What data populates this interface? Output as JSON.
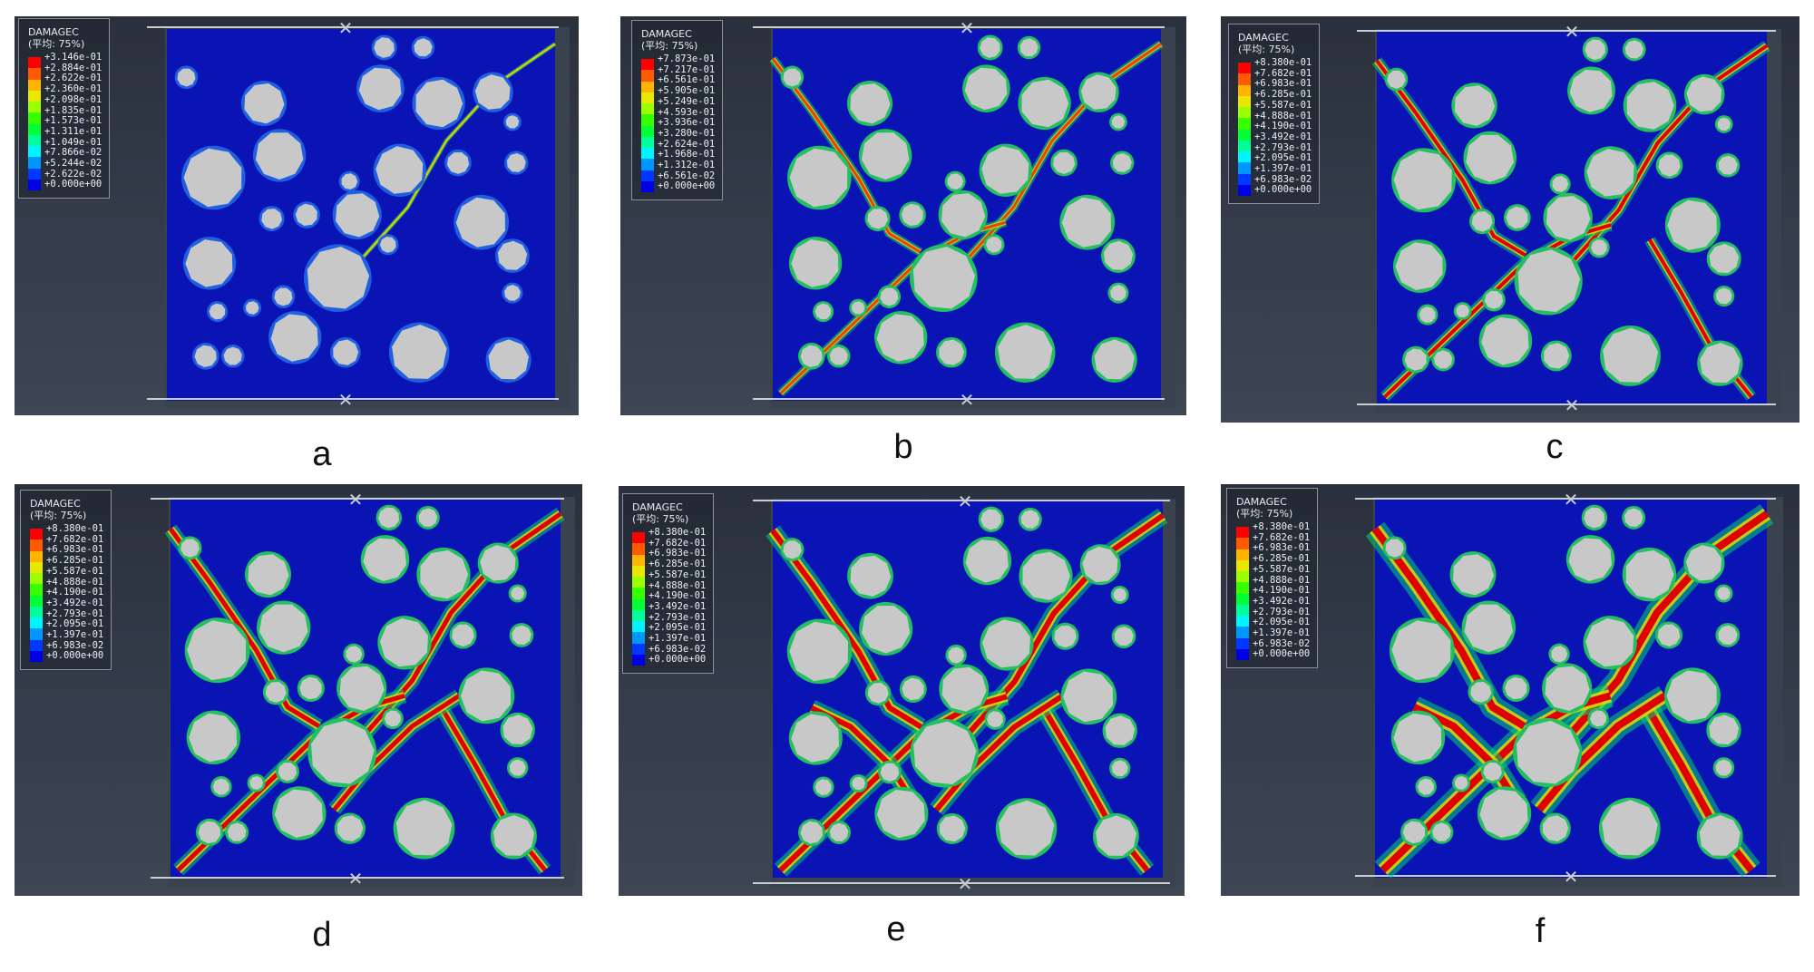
{
  "legend": {
    "title": "DAMAGEC",
    "subtitle": "(平均: 75%)",
    "colors": [
      "#ff0000",
      "#ff5a00",
      "#ffb400",
      "#e8e800",
      "#9cff00",
      "#38ff00",
      "#00ff34",
      "#00ff9a",
      "#00f4ff",
      "#0096ff",
      "#0038ff",
      "#0000e6"
    ]
  },
  "panels": [
    {
      "id": "a",
      "caption": "a",
      "values": [
        "+3.146e-01",
        "+2.884e-01",
        "+2.622e-01",
        "+2.360e-01",
        "+2.098e-01",
        "+1.835e-01",
        "+1.573e-01",
        "+1.311e-01",
        "+1.049e-01",
        "+7.866e-02",
        "+5.244e-02",
        "+2.622e-02",
        "+0.000e+00"
      ]
    },
    {
      "id": "b",
      "caption": "b",
      "values": [
        "+7.873e-01",
        "+7.217e-01",
        "+6.561e-01",
        "+5.905e-01",
        "+5.249e-01",
        "+4.593e-01",
        "+3.936e-01",
        "+3.280e-01",
        "+2.624e-01",
        "+1.968e-01",
        "+1.312e-01",
        "+6.561e-02",
        "+0.000e+00"
      ]
    },
    {
      "id": "c",
      "caption": "c",
      "values": [
        "+8.380e-01",
        "+7.682e-01",
        "+6.983e-01",
        "+6.285e-01",
        "+5.587e-01",
        "+4.888e-01",
        "+4.190e-01",
        "+3.492e-01",
        "+2.793e-01",
        "+2.095e-01",
        "+1.397e-01",
        "+6.983e-02",
        "+0.000e+00"
      ]
    },
    {
      "id": "d",
      "caption": "d",
      "values": [
        "+8.380e-01",
        "+7.682e-01",
        "+6.983e-01",
        "+6.285e-01",
        "+5.587e-01",
        "+4.888e-01",
        "+4.190e-01",
        "+3.492e-01",
        "+2.793e-01",
        "+2.095e-01",
        "+1.397e-01",
        "+6.983e-02",
        "+0.000e+00"
      ]
    },
    {
      "id": "e",
      "caption": "e",
      "values": [
        "+8.380e-01",
        "+7.682e-01",
        "+6.983e-01",
        "+6.285e-01",
        "+5.587e-01",
        "+4.888e-01",
        "+4.190e-01",
        "+3.492e-01",
        "+2.793e-01",
        "+2.095e-01",
        "+1.397e-01",
        "+6.983e-02",
        "+0.000e+00"
      ]
    },
    {
      "id": "f",
      "caption": "f",
      "values": [
        "+8.380e-01",
        "+7.682e-01",
        "+6.983e-01",
        "+6.285e-01",
        "+5.587e-01",
        "+4.888e-01",
        "+4.190e-01",
        "+3.492e-01",
        "+2.793e-01",
        "+2.095e-01",
        "+1.397e-01",
        "+6.983e-02",
        "+0.000e+00"
      ]
    }
  ]
}
